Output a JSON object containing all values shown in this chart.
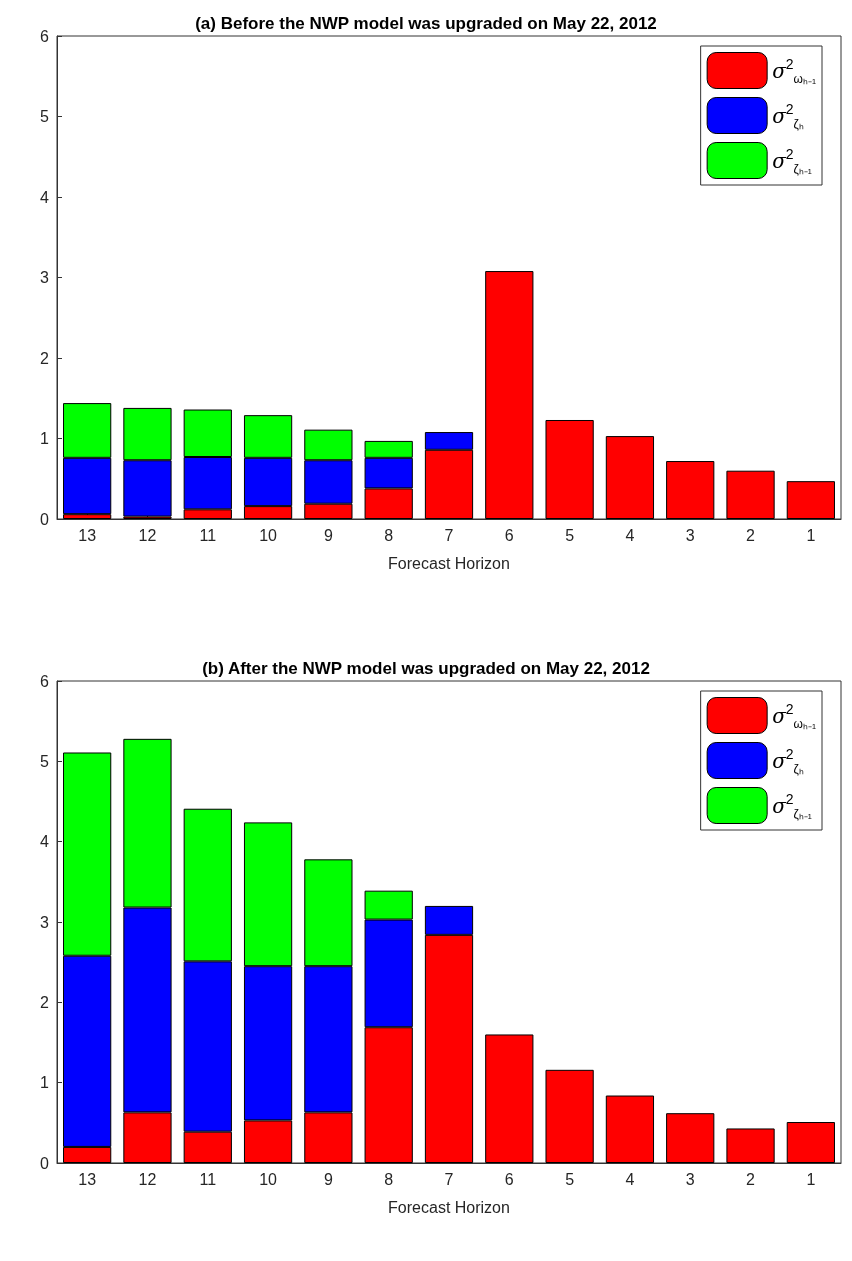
{
  "chart_data": [
    {
      "type": "bar",
      "title": "(a) Before the NWP model was upgraded on May 22, 2012",
      "xlabel": "Forecast Horizon",
      "categories": [
        "13",
        "12",
        "11",
        "10",
        "9",
        "8",
        "7",
        "6",
        "5",
        "4",
        "3",
        "2",
        "1"
      ],
      "stacked": true,
      "ylim": [
        0,
        6
      ],
      "yticks": [
        0,
        1,
        2,
        3,
        4,
        5,
        6
      ],
      "grid": false,
      "legend": "top right",
      "series": [
        {
          "name": "σ$^{2}$$_{ωₕ₋₁}$",
          "color": "#ff0000",
          "values": [
            0.06,
            0.03,
            0.12,
            0.16,
            0.19,
            0.38,
            0.86,
            3.08,
            1.23,
            1.03,
            0.72,
            0.6,
            0.47
          ]
        },
        {
          "name": "σ$^{2}$$_{ζₕ}$",
          "color": "#0000ff",
          "values": [
            0.7,
            0.7,
            0.65,
            0.6,
            0.54,
            0.38,
            0.22,
            null,
            null,
            null,
            null,
            null,
            null
          ]
        },
        {
          "name": "σ$^{2}$$_{ζₕ₋₁}$",
          "color": "#00ff00",
          "values": [
            0.68,
            0.65,
            0.59,
            0.53,
            0.38,
            0.21,
            null,
            null,
            null,
            null,
            null,
            null,
            null
          ]
        }
      ]
    },
    {
      "type": "bar",
      "title": "(b) After the NWP model was upgraded on May 22, 2012",
      "xlabel": "Forecast Horizon",
      "categories": [
        "13",
        "12",
        "11",
        "10",
        "9",
        "8",
        "7",
        "6",
        "5",
        "4",
        "3",
        "2",
        "1"
      ],
      "stacked": true,
      "ylim": [
        0,
        6
      ],
      "yticks": [
        0,
        1,
        2,
        3,
        4,
        5,
        6
      ],
      "grid": false,
      "legend": "top right",
      "series": [
        {
          "name": "σ$^{2}$$_{ωₕ₋₁}$",
          "color": "#ff0000",
          "values": [
            0.2,
            0.63,
            0.39,
            0.53,
            0.63,
            1.69,
            2.84,
            1.6,
            1.16,
            0.84,
            0.62,
            0.43,
            0.51
          ]
        },
        {
          "name": "σ$^{2}$$_{ζₕ}$",
          "color": "#0000ff",
          "values": [
            2.38,
            2.55,
            2.12,
            1.92,
            1.82,
            1.34,
            0.36,
            null,
            null,
            null,
            null,
            null,
            null
          ]
        },
        {
          "name": "σ$^{2}$$_{ζₕ₋₁}$",
          "color": "#00ff00",
          "values": [
            2.53,
            2.1,
            1.9,
            1.79,
            1.33,
            0.36,
            null,
            null,
            null,
            null,
            null,
            null,
            null
          ]
        }
      ]
    }
  ]
}
